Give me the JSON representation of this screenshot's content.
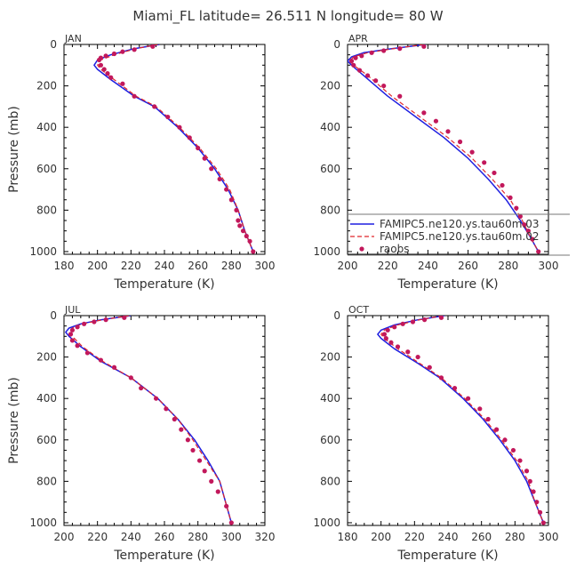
{
  "figure": {
    "title": "Miami_FL  latitude= 26.511 N longitude= 80 W",
    "legend": {
      "entries": [
        "FAMIPC5.ne120.ys.tau60m.03",
        "FAMIPC5.ne120.ys.tau60m.02",
        "raobs"
      ],
      "placement": "inside APR panel, lower right"
    },
    "colors": {
      "series_1": "#1f1fe0",
      "series_2": "#e0262a",
      "raobs": "#c2185b",
      "frame": "#000000"
    }
  },
  "chart_data": [
    {
      "type": "line",
      "panel": "JAN",
      "xlabel": "Temperature (K)",
      "ylabel": "Pressure (mb)",
      "xlim": [
        180,
        300
      ],
      "ylim": [
        1013,
        0
      ],
      "xticks": [
        180,
        200,
        220,
        240,
        260,
        280,
        300
      ],
      "yticks": [
        0,
        200,
        400,
        600,
        800,
        1000
      ],
      "grid": false,
      "series": [
        {
          "name": "FAMIPC5.ne120.ys.tau60m.03",
          "style": "solid",
          "x": [
            237,
            222,
            208,
            200,
            198,
            200,
            208,
            222,
            234,
            248,
            260,
            270,
            278,
            284,
            288,
            293
          ],
          "y": [
            0,
            20,
            50,
            75,
            100,
            120,
            170,
            250,
            300,
            400,
            500,
            600,
            700,
            800,
            900,
            1000
          ]
        },
        {
          "name": "FAMIPC5.ne120.ys.tau60m.02",
          "style": "dashed",
          "x": [
            236,
            223,
            210,
            202,
            200,
            202,
            210,
            223,
            235,
            249,
            261,
            271,
            279,
            284,
            288,
            293
          ],
          "y": [
            0,
            20,
            50,
            75,
            100,
            120,
            170,
            250,
            300,
            400,
            500,
            600,
            700,
            800,
            900,
            1000
          ]
        },
        {
          "name": "raobs",
          "style": "markers",
          "x": [
            233,
            222,
            215,
            210,
            205,
            202,
            201,
            202,
            204,
            206,
            208,
            215,
            222,
            234,
            242,
            249,
            255,
            260,
            264,
            268,
            273,
            277,
            280,
            283,
            284,
            285,
            287,
            289,
            291,
            293
          ],
          "y": [
            10,
            25,
            35,
            45,
            55,
            65,
            75,
            100,
            120,
            140,
            160,
            190,
            250,
            300,
            350,
            400,
            450,
            500,
            550,
            600,
            650,
            700,
            750,
            800,
            850,
            875,
            900,
            925,
            950,
            1000
          ]
        }
      ]
    },
    {
      "type": "line",
      "panel": "APR",
      "xlabel": "Temperature (K)",
      "ylabel": "",
      "xlim": [
        200,
        300
      ],
      "ylim": [
        1013,
        0
      ],
      "xticks": [
        200,
        220,
        240,
        260,
        280,
        300
      ],
      "yticks": [
        0,
        200,
        400,
        600,
        800,
        1000
      ],
      "grid": false,
      "series": [
        {
          "name": "FAMIPC5.ne120.ys.tau60m.03",
          "style": "solid",
          "x": [
            239,
            222,
            208,
            202,
            200,
            202,
            208,
            220,
            234,
            248,
            260,
            270,
            279,
            286,
            291,
            295
          ],
          "y": [
            0,
            20,
            40,
            60,
            80,
            100,
            150,
            250,
            350,
            450,
            550,
            650,
            750,
            850,
            930,
            1000
          ]
        },
        {
          "name": "FAMIPC5.ne120.ys.tau60m.02",
          "style": "dashed",
          "x": [
            238,
            223,
            210,
            203,
            201,
            203,
            210,
            222,
            236,
            250,
            262,
            272,
            281,
            287,
            291,
            295
          ],
          "y": [
            0,
            20,
            40,
            60,
            80,
            100,
            150,
            250,
            350,
            450,
            550,
            650,
            750,
            850,
            930,
            1000
          ]
        },
        {
          "name": "raobs",
          "style": "markers",
          "x": [
            238,
            226,
            218,
            212,
            207,
            204,
            202,
            203,
            206,
            210,
            214,
            218,
            226,
            238,
            244,
            250,
            256,
            262,
            268,
            273,
            277,
            281,
            284,
            286,
            288,
            290,
            292,
            295
          ],
          "y": [
            10,
            20,
            30,
            40,
            55,
            65,
            80,
            100,
            125,
            150,
            175,
            200,
            250,
            330,
            370,
            420,
            470,
            520,
            570,
            620,
            680,
            740,
            790,
            830,
            870,
            900,
            940,
            1000
          ]
        }
      ]
    },
    {
      "type": "line",
      "panel": "JUL",
      "xlabel": "Temperature (K)",
      "ylabel": "Pressure (mb)",
      "xlim": [
        200,
        320
      ],
      "ylim": [
        1013,
        0
      ],
      "xticks": [
        200,
        220,
        240,
        260,
        280,
        300,
        320
      ],
      "yticks": [
        0,
        200,
        400,
        600,
        800,
        1000
      ],
      "grid": false,
      "series": [
        {
          "name": "FAMIPC5.ne120.ys.tau60m.03",
          "style": "solid",
          "x": [
            240,
            222,
            210,
            203,
            201,
            203,
            210,
            222,
            240,
            256,
            268,
            278,
            286,
            293,
            300
          ],
          "y": [
            0,
            20,
            40,
            60,
            80,
            100,
            150,
            220,
            300,
            400,
            500,
            600,
            700,
            800,
            1000
          ]
        },
        {
          "name": "FAMIPC5.ne120.ys.tau60m.02",
          "style": "dashed",
          "x": [
            239,
            223,
            211,
            205,
            203,
            205,
            211,
            223,
            240,
            256,
            268,
            277,
            285,
            293,
            300
          ],
          "y": [
            0,
            20,
            40,
            60,
            80,
            100,
            150,
            220,
            300,
            400,
            500,
            600,
            700,
            800,
            1000
          ]
        },
        {
          "name": "raobs",
          "style": "markers",
          "x": [
            236,
            225,
            218,
            212,
            208,
            205,
            204,
            205,
            208,
            214,
            222,
            230,
            240,
            246,
            255,
            261,
            266,
            270,
            274,
            277,
            281,
            284,
            288,
            292,
            297,
            300
          ],
          "y": [
            10,
            20,
            30,
            40,
            55,
            70,
            90,
            120,
            145,
            180,
            215,
            250,
            300,
            350,
            400,
            450,
            500,
            550,
            600,
            650,
            700,
            750,
            800,
            850,
            920,
            1000
          ]
        }
      ]
    },
    {
      "type": "line",
      "panel": "OCT",
      "xlabel": "Temperature (K)",
      "ylabel": "",
      "xlim": [
        180,
        300
      ],
      "ylim": [
        1013,
        0
      ],
      "xticks": [
        180,
        200,
        220,
        240,
        260,
        280,
        300
      ],
      "yticks": [
        0,
        200,
        400,
        600,
        800,
        1000
      ],
      "grid": false,
      "series": [
        {
          "name": "FAMIPC5.ne120.ys.tau60m.03",
          "style": "solid",
          "x": [
            238,
            222,
            208,
            200,
            198,
            200,
            208,
            222,
            235,
            249,
            261,
            271,
            280,
            287,
            292,
            297
          ],
          "y": [
            0,
            20,
            45,
            70,
            90,
            110,
            160,
            230,
            300,
            400,
            500,
            600,
            700,
            800,
            900,
            1000
          ]
        },
        {
          "name": "FAMIPC5.ne120.ys.tau60m.02",
          "style": "dashed",
          "x": [
            237,
            223,
            210,
            202,
            200,
            202,
            210,
            223,
            236,
            250,
            262,
            272,
            281,
            288,
            292,
            297
          ],
          "y": [
            0,
            20,
            45,
            70,
            90,
            110,
            160,
            230,
            300,
            400,
            500,
            600,
            700,
            800,
            900,
            1000
          ]
        },
        {
          "name": "raobs",
          "style": "markers",
          "x": [
            236,
            226,
            219,
            213,
            208,
            204,
            202,
            203,
            206,
            210,
            216,
            222,
            229,
            236,
            244,
            252,
            259,
            264,
            269,
            274,
            279,
            283,
            287,
            289,
            291,
            293,
            295,
            297
          ],
          "y": [
            10,
            20,
            30,
            40,
            55,
            70,
            90,
            110,
            130,
            150,
            175,
            200,
            250,
            300,
            350,
            400,
            450,
            500,
            550,
            600,
            650,
            700,
            750,
            800,
            850,
            900,
            950,
            1000
          ]
        }
      ]
    }
  ]
}
